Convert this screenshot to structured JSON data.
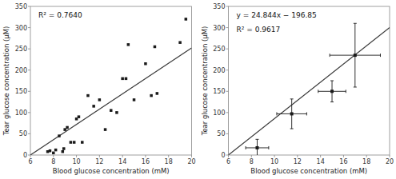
{
  "chart_data": [
    {
      "type": "scatter",
      "xlabel": "Blood glucose concentration (mM)",
      "ylabel": "Tear glucose concentration (μM)",
      "annotations": [
        "R² = 0.7640"
      ],
      "series": [
        {
          "type": "scatter",
          "marker": "square",
          "color": "#1a1a1a",
          "x": [
            7.5,
            7.7,
            8.0,
            8.2,
            8.5,
            8.8,
            8.9,
            9.0,
            9.2,
            9.5,
            9.8,
            10.0,
            10.2,
            10.5,
            11.0,
            11.5,
            12.0,
            12.5,
            13.0,
            13.5,
            14.0,
            14.3,
            14.5,
            15.0,
            16.0,
            16.5,
            16.8,
            17.0,
            19.0,
            19.5
          ],
          "values": [
            8,
            10,
            5,
            12,
            45,
            8,
            15,
            60,
            65,
            30,
            30,
            85,
            90,
            30,
            140,
            115,
            130,
            60,
            105,
            100,
            180,
            180,
            260,
            130,
            215,
            140,
            255,
            145,
            265,
            320
          ]
        },
        {
          "type": "line",
          "line_style": "solid",
          "color": "#3a3a3a",
          "x": [
            6,
            20
          ],
          "values": [
            0,
            252
          ]
        }
      ],
      "xlim": [
        6,
        20
      ],
      "ylim": [
        0,
        350
      ],
      "xticks": [
        6,
        8,
        10,
        12,
        14,
        16,
        18,
        20
      ],
      "yticks": [
        0,
        50,
        100,
        150,
        200,
        250,
        300,
        350
      ],
      "grid": false
    },
    {
      "type": "scatter",
      "xlabel": "Blood glucose concentration (mM)",
      "ylabel": "Tear glucose concentration (μM)",
      "annotations": [
        "y = 24.844x − 196.85",
        "R² = 0.9617"
      ],
      "series": [
        {
          "type": "scatter",
          "marker": "square",
          "color": "#1a1a1a",
          "x": [
            8.5,
            11.5,
            15.0,
            17.0
          ],
          "values": [
            17,
            97,
            150,
            235
          ],
          "xerr": [
            1.0,
            1.3,
            1.2,
            2.2
          ],
          "yerr": [
            20,
            35,
            25,
            75
          ]
        },
        {
          "type": "line",
          "line_style": "solid",
          "color": "#3a3a3a",
          "x": [
            6,
            20
          ],
          "values": [
            0,
            300.03
          ]
        }
      ],
      "xlim": [
        6,
        20
      ],
      "ylim": [
        0,
        350
      ],
      "xticks": [
        6,
        8,
        10,
        12,
        14,
        16,
        18,
        20
      ],
      "yticks": [
        0,
        50,
        100,
        150,
        200,
        250,
        300,
        350
      ],
      "grid": false
    }
  ]
}
